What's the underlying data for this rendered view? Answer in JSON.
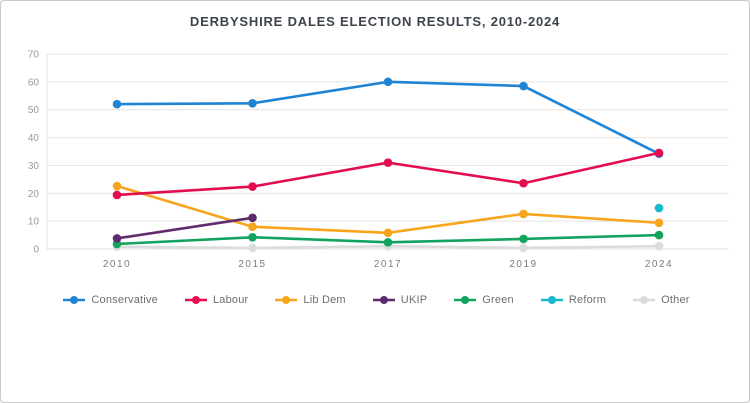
{
  "title": "DERBYSHIRE DALES ELECTION RESULTS, 2010-2024",
  "chart_data": {
    "type": "line",
    "title": "DERBYSHIRE DALES ELECTION RESULTS, 2010-2024",
    "categories": [
      "2010",
      "2015",
      "2017",
      "2019",
      "2024"
    ],
    "series": [
      {
        "name": "Conservative",
        "color": "#1e84d3",
        "values": [
          52,
          52.3,
          60,
          58.5,
          34.2
        ]
      },
      {
        "name": "Labour",
        "color": "#e30d4e",
        "values": [
          19.4,
          22.4,
          31,
          23.6,
          34.5
        ]
      },
      {
        "name": "Lib Dem",
        "color": "#f8a51d",
        "values": [
          22.6,
          8,
          5.8,
          12.6,
          9.4
        ]
      },
      {
        "name": "UKIP",
        "color": "#5f2a6e",
        "values": [
          3.8,
          11.2,
          null,
          null,
          null
        ]
      },
      {
        "name": "Green",
        "color": "#12a45f",
        "values": [
          1.8,
          4.2,
          2.4,
          3.6,
          5
        ]
      },
      {
        "name": "Reform",
        "color": "#1ab9ce",
        "values": [
          null,
          null,
          null,
          null,
          14.7
        ]
      },
      {
        "name": "Other",
        "color": "#dcdcdc",
        "values": [
          0.8,
          0.4,
          1,
          0.4,
          1
        ]
      }
    ],
    "xlabel": "",
    "ylabel": "",
    "ylim": [
      0,
      70
    ],
    "ytick_interval": 10,
    "grid": "horizontal",
    "grid_color": "#e4e4e4",
    "legend_position": "bottom",
    "draw_order": [
      "Other",
      "Green",
      "Lib Dem",
      "UKIP",
      "Conservative",
      "Labour",
      "Reform"
    ]
  }
}
